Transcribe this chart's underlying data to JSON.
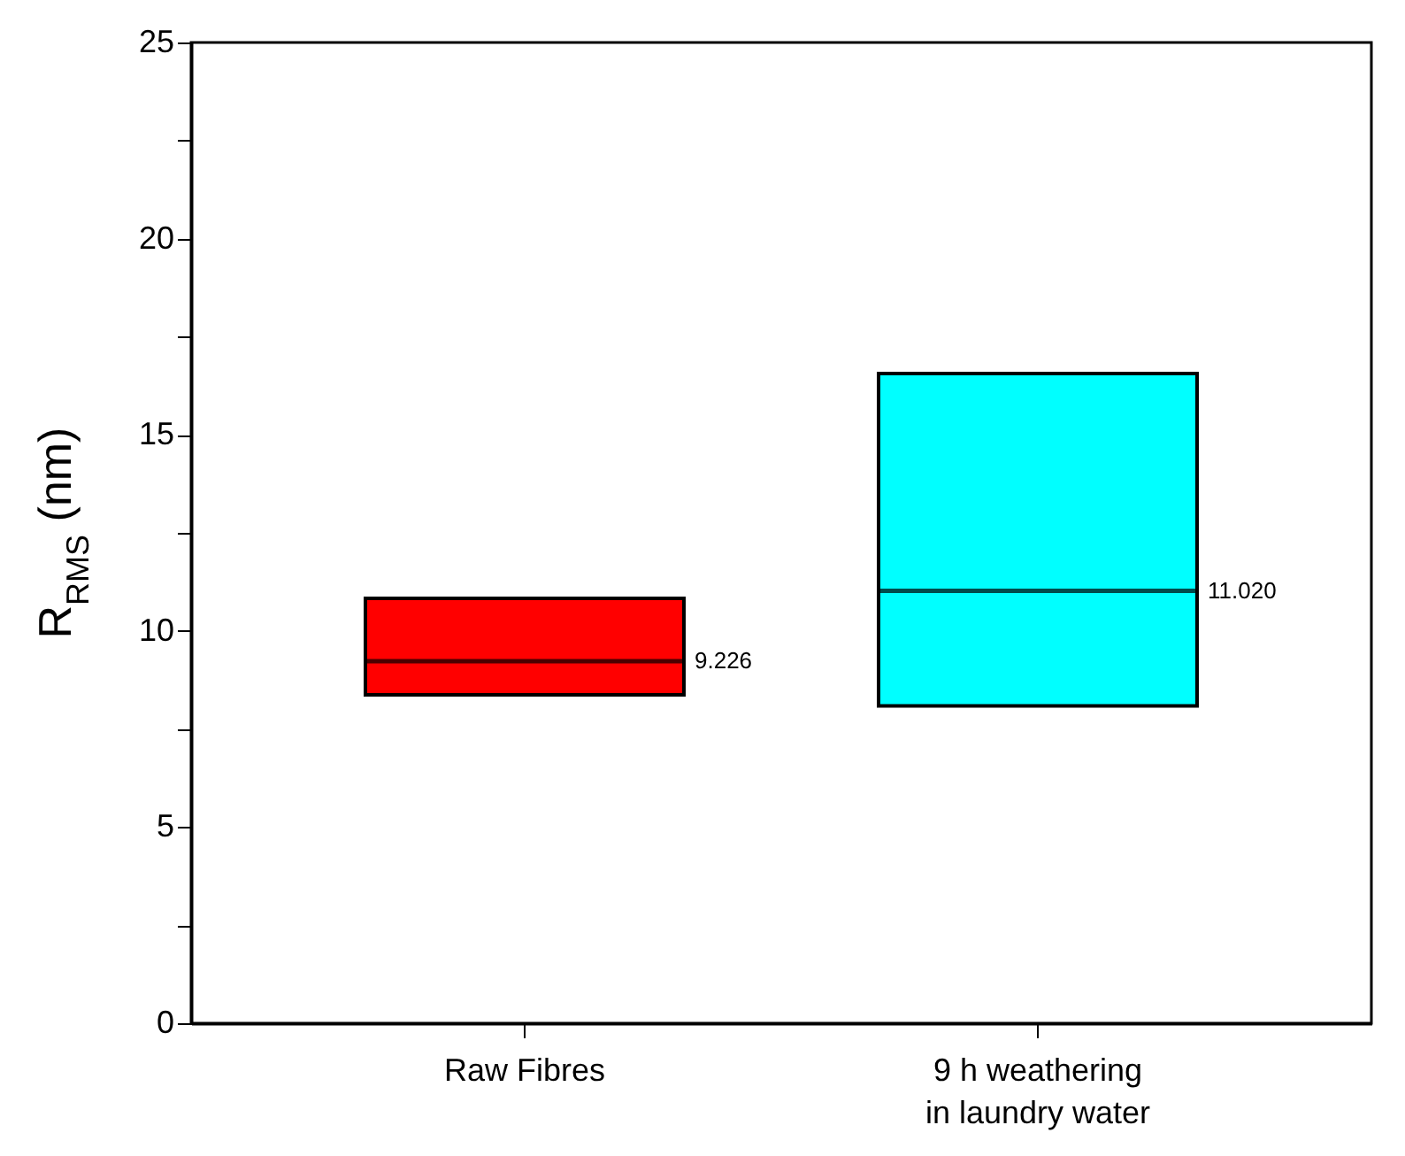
{
  "chart_data": {
    "type": "box",
    "ylabel": "R$_{RMS}$ (nm)",
    "categories": [
      "Raw Fibres",
      "9 h weathering in laundry water"
    ],
    "boxes": [
      {
        "low": 8.37,
        "q1": 8.37,
        "median": 9.226,
        "q3": 10.83,
        "high": 10.83
      },
      {
        "low": 8.09,
        "q1": 8.09,
        "median": 11.02,
        "q3": 16.56,
        "high": 16.56
      }
    ],
    "colors": [
      "#ff0000",
      "#00ffff"
    ],
    "ylim": [
      0,
      25
    ],
    "yticks": [
      0,
      {
        "value": 2.5,
        "label": null
      },
      5,
      {
        "value": 7.5,
        "label": null
      },
      10,
      {
        "value": 12.5,
        "label": null
      },
      15,
      {
        "value": 17.5,
        "label": null
      },
      20,
      {
        "value": 22.5,
        "label": null
      },
      25
    ],
    "annotations": [
      "9.226",
      "11.020"
    ],
    "grid": false,
    "legend": false
  }
}
